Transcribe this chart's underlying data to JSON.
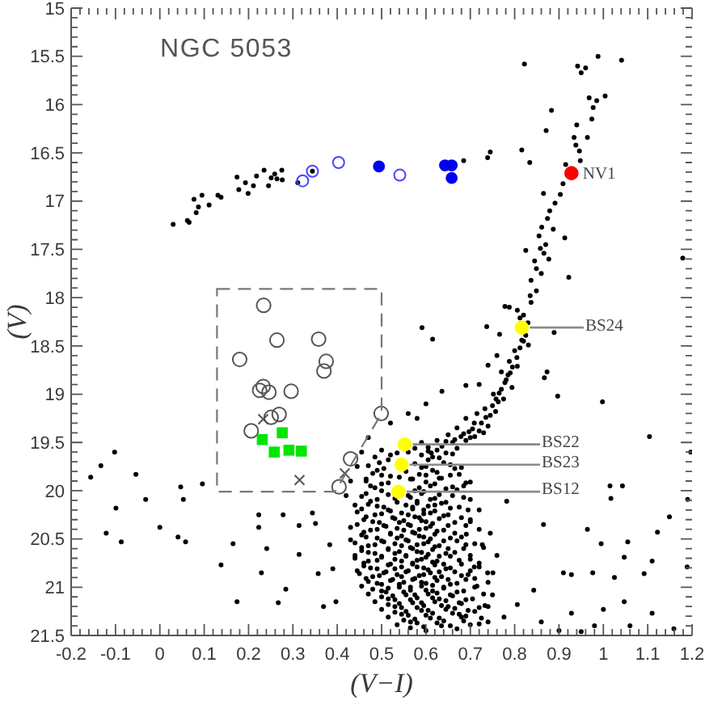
{
  "chart_data": {
    "type": "scatter",
    "title": "NGC 5053",
    "xlabel": "(V−I)",
    "ylabel": "(V)",
    "xlim": [
      -0.2,
      1.2
    ],
    "ylim": [
      21.5,
      15
    ],
    "xticks": [
      -0.2,
      {
        "value": -0.18,
        "label": null
      },
      {
        "value": -0.16,
        "label": null
      },
      {
        "value": -0.14,
        "label": null
      },
      {
        "value": -0.12,
        "label": null
      },
      -0.1,
      {
        "value": -0.08,
        "label": null
      },
      {
        "value": -0.06,
        "label": null
      },
      {
        "value": -0.04,
        "label": null
      },
      {
        "value": -0.02,
        "label": null
      },
      0,
      {
        "value": 0.02,
        "label": null
      },
      {
        "value": 0.04,
        "label": null
      },
      {
        "value": 0.06,
        "label": null
      },
      {
        "value": 0.08,
        "label": null
      },
      0.1,
      {
        "value": 0.12,
        "label": null
      },
      {
        "value": 0.14,
        "label": null
      },
      {
        "value": 0.16,
        "label": null
      },
      {
        "value": 0.18,
        "label": null
      },
      0.2,
      {
        "value": 0.22,
        "label": null
      },
      {
        "value": 0.24,
        "label": null
      },
      {
        "value": 0.26,
        "label": null
      },
      {
        "value": 0.28,
        "label": null
      },
      0.3,
      {
        "value": 0.32,
        "label": null
      },
      {
        "value": 0.34,
        "label": null
      },
      {
        "value": 0.36,
        "label": null
      },
      {
        "value": 0.38,
        "label": null
      },
      0.4,
      {
        "value": 0.42,
        "label": null
      },
      {
        "value": 0.44,
        "label": null
      },
      {
        "value": 0.46,
        "label": null
      },
      {
        "value": 0.48,
        "label": null
      },
      0.5,
      {
        "value": 0.52,
        "label": null
      },
      {
        "value": 0.54,
        "label": null
      },
      {
        "value": 0.56,
        "label": null
      },
      {
        "value": 0.58,
        "label": null
      },
      0.6,
      {
        "value": 0.62,
        "label": null
      },
      {
        "value": 0.64,
        "label": null
      },
      {
        "value": 0.66,
        "label": null
      },
      {
        "value": 0.68,
        "label": null
      },
      0.7,
      {
        "value": 0.72,
        "label": null
      },
      {
        "value": 0.74,
        "label": null
      },
      {
        "value": 0.76,
        "label": null
      },
      {
        "value": 0.78,
        "label": null
      },
      0.8,
      {
        "value": 0.82,
        "label": null
      },
      {
        "value": 0.84,
        "label": null
      },
      {
        "value": 0.86,
        "label": null
      },
      {
        "value": 0.88,
        "label": null
      },
      0.9,
      {
        "value": 0.92,
        "label": null
      },
      {
        "value": 0.94,
        "label": null
      },
      {
        "value": 0.96,
        "label": null
      },
      {
        "value": 0.98,
        "label": null
      },
      1,
      {
        "value": 1.02,
        "label": null
      },
      {
        "value": 1.04,
        "label": null
      },
      {
        "value": 1.06,
        "label": null
      },
      {
        "value": 1.08,
        "label": null
      },
      1.1,
      {
        "value": 1.12,
        "label": null
      },
      {
        "value": 1.14,
        "label": null
      },
      {
        "value": 1.16,
        "label": null
      },
      {
        "value": 1.18,
        "label": null
      },
      1.2
    ],
    "yticks": [
      15,
      {
        "value": 15.1,
        "label": null
      },
      {
        "value": 15.2,
        "label": null
      },
      {
        "value": 15.3,
        "label": null
      },
      {
        "value": 15.4,
        "label": null
      },
      15.5,
      {
        "value": 15.6,
        "label": null
      },
      {
        "value": 15.7,
        "label": null
      },
      {
        "value": 15.8,
        "label": null
      },
      {
        "value": 15.9,
        "label": null
      },
      16,
      {
        "value": 16.1,
        "label": null
      },
      {
        "value": 16.2,
        "label": null
      },
      {
        "value": 16.3,
        "label": null
      },
      {
        "value": 16.4,
        "label": null
      },
      16.5,
      {
        "value": 16.6,
        "label": null
      },
      {
        "value": 16.7,
        "label": null
      },
      {
        "value": 16.8,
        "label": null
      },
      {
        "value": 16.9,
        "label": null
      },
      17,
      {
        "value": 17.1,
        "label": null
      },
      {
        "value": 17.2,
        "label": null
      },
      {
        "value": 17.3,
        "label": null
      },
      {
        "value": 17.4,
        "label": null
      },
      17.5,
      {
        "value": 17.6,
        "label": null
      },
      {
        "value": 17.7,
        "label": null
      },
      {
        "value": 17.8,
        "label": null
      },
      {
        "value": 17.9,
        "label": null
      },
      18,
      {
        "value": 18.1,
        "label": null
      },
      {
        "value": 18.2,
        "label": null
      },
      {
        "value": 18.3,
        "label": null
      },
      {
        "value": 18.4,
        "label": null
      },
      18.5,
      {
        "value": 18.6,
        "label": null
      },
      {
        "value": 18.7,
        "label": null
      },
      {
        "value": 18.8,
        "label": null
      },
      {
        "value": 18.9,
        "label": null
      },
      19,
      {
        "value": 19.1,
        "label": null
      },
      {
        "value": 19.2,
        "label": null
      },
      {
        "value": 19.3,
        "label": null
      },
      {
        "value": 19.4,
        "label": null
      },
      19.5,
      {
        "value": 19.6,
        "label": null
      },
      {
        "value": 19.7,
        "label": null
      },
      {
        "value": 19.8,
        "label": null
      },
      {
        "value": 19.9,
        "label": null
      },
      20,
      {
        "value": 20.1,
        "label": null
      },
      {
        "value": 20.2,
        "label": null
      },
      {
        "value": 20.3,
        "label": null
      },
      {
        "value": 20.4,
        "label": null
      },
      20.5,
      {
        "value": 20.6,
        "label": null
      },
      {
        "value": 20.7,
        "label": null
      },
      {
        "value": 20.8,
        "label": null
      },
      {
        "value": 20.9,
        "label": null
      },
      21,
      {
        "value": 21.1,
        "label": null
      },
      {
        "value": 21.2,
        "label": null
      },
      {
        "value": 21.3,
        "label": null
      },
      {
        "value": 21.4,
        "label": null
      },
      21.5
    ],
    "series": [
      {
        "color": "#000000",
        "marker": "circle",
        "x": [
          0.03,
          0.062,
          0.066,
          0.077,
          0.087,
          0.082,
          0.095,
          0.111,
          0.131,
          0.138,
          0.174,
          0.178,
          0.193,
          0.199,
          0.211,
          0.218,
          0.235,
          0.245,
          0.251,
          0.259,
          0.264,
          0.275,
          0.276,
          0.311,
          0.344,
          0.685,
          0.739,
          0.745,
          0.816,
          0.834,
          0.822,
          0.988,
          1.041,
          0.942,
          0.96,
          0.95,
          1.004,
          0.968,
          0.985,
          0.977,
          0.974,
          0.883,
          0.871,
          0.94,
          0.964,
          0.934,
          0.938,
          0.946,
          0.948,
          0.915,
          0.909,
          0.903,
          0.891,
          0.879,
          0.865,
          0.874,
          0.861,
          0.887,
          0.913,
          0.858,
          0.866,
          0.877,
          0.849,
          0.922,
          0.837,
          0.849,
          0.837,
          0.825,
          0.806,
          0.788,
          0.778,
          0.812,
          0.83,
          0.889,
          0.737,
          0.766,
          0.825,
          0.831,
          0.591,
          0.615,
          1.179,
          0.855,
          0.87,
          0.845,
          0.86,
          0.835,
          0.82,
          0.816,
          0.8,
          0.788,
          0.806,
          0.77,
          0.781,
          0.794,
          0.752,
          0.763,
          0.733,
          0.745,
          0.709,
          0.697,
          0.679,
          0.66,
          0.636,
          0.612,
          0.867,
          0.873,
          0.897,
          0.998,
          0.76,
          0.74,
          0.72,
          0.775,
          0.715,
          0.69,
          0.67,
          0.65,
          0.7,
          0.72,
          0.625,
          0.59
        ],
        "values": [
          17.24,
          17.2,
          17.22,
          16.98,
          17.06,
          17.12,
          16.94,
          17.04,
          16.94,
          16.96,
          16.75,
          16.88,
          16.81,
          16.92,
          16.84,
          16.74,
          16.68,
          16.84,
          16.76,
          16.72,
          16.77,
          16.68,
          16.78,
          16.81,
          16.69,
          16.58,
          16.55,
          16.49,
          16.47,
          16.6,
          15.58,
          15.5,
          15.54,
          15.6,
          15.62,
          15.67,
          15.91,
          15.93,
          15.96,
          16.03,
          16.15,
          16.06,
          16.27,
          16.21,
          16.34,
          16.34,
          16.42,
          16.48,
          16.58,
          16.62,
          16.82,
          16.93,
          17.02,
          17.1,
          16.92,
          17.18,
          17.27,
          17.29,
          17.38,
          17.49,
          17.54,
          17.6,
          17.7,
          17.79,
          17.82,
          17.93,
          18.05,
          17.51,
          18.13,
          18.1,
          18.09,
          18.21,
          18.26,
          18.36,
          18.3,
          18.38,
          18.39,
          18.49,
          18.31,
          18.43,
          17.59,
          17.36,
          17.45,
          17.62,
          17.75,
          17.98,
          18.18,
          18.44,
          18.55,
          18.66,
          18.71,
          18.77,
          18.85,
          18.93,
          19.0,
          19.08,
          19.15,
          19.22,
          19.3,
          19.39,
          19.44,
          19.5,
          19.54,
          19.61,
          18.83,
          18.77,
          19.02,
          19.08,
          18.6,
          18.7,
          18.9,
          19.05,
          19.2,
          19.25,
          19.35,
          19.42,
          19.45,
          19.38,
          19.48,
          19.5
        ]
      },
      {
        "color": "#000000",
        "marker": "circle",
        "x": [
          0.5,
          0.535,
          0.575,
          0.605,
          0.485,
          0.515,
          0.59,
          0.63,
          0.66,
          0.47,
          0.505,
          0.575,
          0.6,
          0.64,
          0.68,
          0.48,
          0.52,
          0.555,
          0.585,
          0.615,
          0.655,
          0.465,
          0.5,
          0.565,
          0.6,
          0.63,
          0.69,
          0.485,
          0.575,
          0.61,
          0.645,
          0.455,
          0.49,
          0.515,
          0.565,
          0.59,
          0.62,
          0.66,
          0.7,
          0.47,
          0.505,
          0.535,
          0.555,
          0.58,
          0.605,
          0.635,
          0.675,
          0.445,
          0.485,
          0.515,
          0.545,
          0.57,
          0.595,
          0.62,
          0.65,
          0.72,
          0.46,
          0.495,
          0.525,
          0.55,
          0.575,
          0.6,
          0.63,
          0.665,
          0.43,
          0.475,
          0.505,
          0.535,
          0.56,
          0.585,
          0.61,
          0.64,
          0.69,
          0.455,
          0.49,
          0.52,
          0.545,
          0.57,
          0.595,
          0.62,
          0.655,
          0.745
        ],
        "values": [
          19.58,
          19.61,
          19.56,
          19.59,
          19.65,
          19.68,
          19.63,
          19.66,
          19.62,
          19.74,
          19.77,
          19.72,
          19.75,
          19.71,
          19.76,
          19.82,
          19.85,
          19.8,
          19.83,
          19.79,
          19.84,
          19.9,
          19.93,
          19.88,
          19.91,
          19.87,
          19.92,
          19.97,
          20.0,
          19.95,
          19.98,
          20.06,
          20.09,
          20.04,
          20.07,
          20.03,
          20.08,
          20.05,
          20.09,
          20.14,
          20.17,
          20.12,
          20.15,
          20.11,
          20.16,
          20.13,
          20.17,
          20.22,
          20.25,
          20.2,
          20.23,
          20.19,
          20.24,
          20.21,
          20.25,
          20.2,
          20.3,
          20.33,
          20.28,
          20.31,
          20.27,
          20.32,
          20.29,
          20.33,
          20.38,
          20.41,
          20.36,
          20.39,
          20.35,
          20.4,
          20.37,
          20.41,
          20.36,
          20.46,
          20.49,
          20.44,
          20.47,
          20.43,
          20.48,
          20.45,
          20.49,
          20.44
        ]
      },
      {
        "color": "#000000",
        "marker": "circle",
        "x": [
          0.44,
          0.47,
          0.5,
          0.53,
          0.555,
          0.58,
          0.605,
          0.63,
          0.67,
          0.71,
          0.455,
          0.485,
          0.515,
          0.54,
          0.565,
          0.59,
          0.615,
          0.645,
          0.685,
          0.44,
          0.47,
          0.5,
          0.53,
          0.555,
          0.58,
          0.6,
          0.625,
          0.655,
          0.7,
          0.76,
          0.46,
          0.49,
          0.52,
          0.545,
          0.57,
          0.595,
          0.62,
          0.645,
          0.68,
          0.72,
          0.45,
          0.48,
          0.51,
          0.535,
          0.56,
          0.585,
          0.61,
          0.635,
          0.665,
          0.695,
          0.47,
          0.5,
          0.525,
          0.55,
          0.575,
          0.6,
          0.625,
          0.655,
          0.69,
          0.74,
          0.48,
          0.51,
          0.54,
          0.565,
          0.59,
          0.615,
          0.64,
          0.67,
          0.71,
          0.5,
          0.53,
          0.555,
          0.58,
          0.605,
          0.63,
          0.66,
          0.69,
          0.75,
          0.515,
          0.545,
          0.57,
          0.595,
          0.62,
          0.65,
          0.68,
          0.72,
          0.53,
          0.56,
          0.59,
          0.615,
          0.645,
          0.675,
          0.71,
          0.55,
          0.58,
          0.61,
          0.64,
          0.68,
          0.74,
          0.565,
          0.6,
          0.635,
          0.67,
          0.7
        ],
        "values": [
          20.54,
          20.57,
          20.52,
          20.55,
          20.51,
          20.56,
          20.53,
          20.57,
          20.52,
          20.55,
          20.62,
          20.65,
          20.6,
          20.63,
          20.59,
          20.64,
          20.61,
          20.65,
          20.6,
          20.7,
          20.73,
          20.68,
          20.71,
          20.67,
          20.72,
          20.69,
          20.73,
          20.68,
          20.71,
          20.67,
          20.78,
          20.81,
          20.76,
          20.79,
          20.75,
          20.8,
          20.77,
          20.81,
          20.76,
          20.79,
          20.86,
          20.89,
          20.84,
          20.87,
          20.83,
          20.88,
          20.85,
          20.89,
          20.84,
          20.87,
          20.94,
          20.97,
          20.92,
          20.95,
          20.91,
          20.96,
          20.93,
          20.97,
          20.92,
          20.95,
          21.02,
          21.05,
          21.0,
          21.03,
          20.99,
          21.04,
          21.01,
          21.05,
          21.0,
          21.1,
          21.13,
          21.08,
          21.11,
          21.07,
          21.12,
          21.09,
          21.13,
          21.08,
          21.18,
          21.21,
          21.16,
          21.19,
          21.15,
          21.2,
          21.17,
          21.21,
          21.26,
          21.29,
          21.24,
          21.27,
          21.23,
          21.28,
          21.25,
          21.34,
          21.37,
          21.32,
          21.35,
          21.31,
          21.36,
          21.42,
          21.45,
          21.4,
          21.43,
          21.39
        ]
      },
      {
        "color": "#000000",
        "marker": "circle",
        "x": [
          0.52,
          0.56,
          0.615,
          0.645,
          0.495,
          0.605,
          0.655,
          0.49,
          0.59,
          0.625,
          0.665,
          0.465,
          0.5,
          0.54,
          0.57,
          0.6,
          0.635,
          0.675,
          0.475,
          0.515,
          0.585,
          0.62,
          0.66,
          0.7,
          0.465,
          0.5,
          0.56,
          0.595,
          0.63,
          0.67,
          0.475,
          0.53,
          0.58,
          0.61,
          0.645,
          0.685,
          0.455,
          0.49,
          0.52,
          0.57,
          0.595,
          0.62,
          0.655,
          0.695,
          0.465,
          0.5,
          0.53,
          0.56,
          0.585,
          0.61,
          0.64,
          0.68,
          0.445,
          0.48,
          0.51,
          0.54,
          0.565,
          0.59,
          0.615,
          0.65,
          0.7,
          0.46,
          0.49,
          0.52,
          0.55,
          0.575,
          0.6,
          0.625,
          0.665,
          0.72,
          0.43,
          0.465,
          0.505,
          0.535,
          0.56,
          0.585,
          0.61,
          0.64,
          0.68,
          0.455,
          0.485,
          0.515,
          0.545,
          0.57,
          0.595,
          0.62,
          0.65,
          0.69,
          0.73,
          0.44,
          0.47,
          0.5,
          0.53,
          0.555,
          0.58,
          0.605,
          0.63,
          0.665,
          0.7,
          0.46,
          0.49,
          0.515,
          0.545,
          0.57,
          0.59,
          0.615,
          0.64,
          0.675,
          0.72
        ],
        "values": [
          19.63,
          19.6,
          19.65,
          19.61,
          19.71,
          19.68,
          19.73,
          19.79,
          19.76,
          19.81,
          19.77,
          19.88,
          19.84,
          19.86,
          19.88,
          19.84,
          19.87,
          19.83,
          19.95,
          19.92,
          19.97,
          19.93,
          19.96,
          19.91,
          20.03,
          20.0,
          20.05,
          20.01,
          20.04,
          19.99,
          20.11,
          20.08,
          20.13,
          20.09,
          20.12,
          20.07,
          20.19,
          20.16,
          20.21,
          20.17,
          20.2,
          20.15,
          20.18,
          20.2,
          20.27,
          20.24,
          20.29,
          20.25,
          20.28,
          20.23,
          20.26,
          20.28,
          20.35,
          20.32,
          20.37,
          20.33,
          20.36,
          20.31,
          20.34,
          20.36,
          20.32,
          20.43,
          20.4,
          20.45,
          20.41,
          20.44,
          20.39,
          20.42,
          20.44,
          20.4,
          20.51,
          20.48,
          20.53,
          20.49,
          20.52,
          20.47,
          20.5,
          20.52,
          20.48,
          20.59,
          20.56,
          20.61,
          20.57,
          20.6,
          20.55,
          20.58,
          20.6,
          20.56,
          20.59,
          20.67,
          20.64,
          20.69,
          20.65,
          20.68,
          20.63,
          20.66,
          20.68,
          20.64,
          20.67,
          20.75,
          20.72,
          20.77,
          20.73,
          20.76,
          20.71,
          20.74,
          20.76,
          20.72,
          20.75
        ]
      },
      {
        "color": "#000000",
        "marker": "circle",
        "x": [
          0.445,
          0.475,
          0.505,
          0.53,
          0.555,
          0.58,
          0.605,
          0.63,
          0.655,
          0.7,
          0.465,
          0.495,
          0.52,
          0.545,
          0.57,
          0.595,
          0.62,
          0.65,
          0.68,
          0.71,
          0.455,
          0.49,
          0.515,
          0.54,
          0.565,
          0.59,
          0.615,
          0.64,
          0.67,
          0.715,
          0.47,
          0.5,
          0.525,
          0.55,
          0.575,
          0.6,
          0.625,
          0.655,
          0.685,
          0.73,
          0.485,
          0.515,
          0.54,
          0.565,
          0.59,
          0.615,
          0.645,
          0.675,
          0.705,
          0.5,
          0.53,
          0.555,
          0.58,
          0.605,
          0.635,
          0.665,
          0.695,
          0.74,
          0.515,
          0.545,
          0.575,
          0.6,
          0.63,
          0.66,
          0.69,
          0.725,
          0.535,
          0.565,
          0.595,
          0.625,
          0.655,
          0.685,
          0.72,
          0.605,
          0.625,
          0.645,
          0.665,
          0.685,
          0.705,
          0.725,
          0.735,
          0.75,
          0.758,
          0.77,
          0.778,
          0.785,
          0.795,
          0.805,
          0.812,
          0.82,
          0.69,
          0.67,
          0.71,
          0.73,
          0.74,
          0.757,
          0.765,
          0.79
        ],
        "values": [
          20.83,
          20.8,
          20.85,
          20.81,
          20.84,
          20.79,
          20.82,
          20.84,
          20.8,
          20.83,
          20.91,
          20.88,
          20.93,
          20.89,
          20.92,
          20.87,
          20.9,
          20.92,
          20.88,
          20.91,
          20.99,
          20.96,
          21.01,
          20.97,
          21.0,
          20.95,
          20.98,
          21.0,
          20.96,
          20.99,
          21.07,
          21.04,
          21.09,
          21.05,
          21.08,
          21.03,
          21.06,
          21.08,
          21.04,
          21.07,
          21.15,
          21.12,
          21.17,
          21.13,
          21.16,
          21.11,
          21.14,
          21.16,
          21.12,
          21.23,
          21.2,
          21.25,
          21.21,
          21.24,
          21.19,
          21.22,
          21.24,
          21.2,
          21.31,
          21.28,
          21.33,
          21.29,
          21.32,
          21.27,
          21.3,
          21.32,
          21.39,
          21.36,
          21.41,
          21.37,
          21.4,
          21.35,
          21.38,
          19.55,
          19.58,
          19.49,
          19.47,
          19.41,
          19.36,
          19.3,
          19.24,
          19.12,
          19.05,
          18.95,
          18.88,
          18.8,
          18.72,
          18.62,
          18.52,
          18.45,
          19.48,
          19.56,
          19.44,
          19.4,
          19.33,
          19.18,
          18.99,
          18.78
        ]
      },
      {
        "color": "#000000",
        "marker": "circle",
        "x": [
          -0.156,
          -0.102,
          -0.133,
          -0.054,
          -0.032,
          -0.099,
          0.0,
          -0.121,
          -0.087,
          0.047,
          0.053,
          0.041,
          0.058,
          0.096,
          0.138,
          0.165,
          0.174,
          0.223,
          0.223,
          0.229,
          0.241,
          0.267,
          0.278,
          0.284,
          0.314,
          0.314,
          0.344,
          0.351,
          0.357,
          0.369,
          0.383,
          0.39,
          0.397,
          1.104,
          1.015,
          1.017,
          1.043,
          1.197,
          1.19,
          1.149,
          1.122,
          1.055,
          0.995,
          0.964,
          0.865,
          0.976,
          1.025,
          1.047,
          1.092,
          1.11,
          1.189,
          1.0,
          1.047,
          1.11,
          1.159,
          0.928,
          0.91,
          0.928,
          0.843,
          0.806,
          0.776,
          0.86,
          0.727,
          0.739,
          0.709,
          0.691,
          0.7,
          0.685,
          0.782,
          0.751,
          0.733,
          0.636,
          0.69,
          0.56,
          0.6,
          0.47,
          0.455,
          0.445,
          0.43,
          0.42,
          0.44,
          0.52,
          0.58,
          0.9,
          0.95,
          0.98,
          1.06
        ],
        "values": [
          19.86,
          19.6,
          19.74,
          19.83,
          20.09,
          20.18,
          20.38,
          20.44,
          20.53,
          19.96,
          20.09,
          20.48,
          20.53,
          19.93,
          20.77,
          20.55,
          21.15,
          20.25,
          20.38,
          20.85,
          20.6,
          21.16,
          20.25,
          21.02,
          20.36,
          20.66,
          20.23,
          20.34,
          20.86,
          21.2,
          20.56,
          20.81,
          21.15,
          19.44,
          19.95,
          20.08,
          19.95,
          19.6,
          20.09,
          20.27,
          20.43,
          20.53,
          20.55,
          20.4,
          20.35,
          20.85,
          20.9,
          20.69,
          20.86,
          20.73,
          20.79,
          21.23,
          21.15,
          21.27,
          21.43,
          20.87,
          20.85,
          21.27,
          21.03,
          21.18,
          21.31,
          21.36,
          20.56,
          20.85,
          20.79,
          20.45,
          20.3,
          19.95,
          20.11,
          20.85,
          21.19,
          18.97,
          18.91,
          19.2,
          19.1,
          19.45,
          19.6,
          19.75,
          19.9,
          20.05,
          20.15,
          19.3,
          19.25,
          21.45,
          21.46,
          21.4,
          21.4
        ]
      },
      {
        "color": "#555555",
        "marker": "circle-open",
        "x": [
          0.234,
          0.264,
          0.358,
          0.18,
          0.375,
          0.37,
          0.225,
          0.233,
          0.246,
          0.296,
          0.251,
          0.269,
          0.206,
          0.499,
          0.43,
          0.404
        ],
        "values": [
          18.08,
          18.44,
          18.43,
          18.64,
          18.66,
          18.76,
          18.96,
          18.92,
          18.98,
          18.97,
          19.24,
          19.21,
          19.38,
          19.2,
          19.67,
          19.96
        ]
      },
      {
        "color": "#555555",
        "marker": "cross",
        "x": [
          0.233,
          0.315,
          0.417
        ],
        "values": [
          19.26,
          19.89,
          19.82
        ]
      },
      {
        "color": "#00e600",
        "marker": "square",
        "x": [
          0.231,
          0.276,
          0.258,
          0.291,
          0.319
        ],
        "values": [
          19.47,
          19.4,
          19.6,
          19.58,
          19.59
        ]
      },
      {
        "color": "#4848ff",
        "marker": "circle-open",
        "x": [
          0.322,
          0.344,
          0.403,
          0.541
        ],
        "values": [
          16.79,
          16.69,
          16.6,
          16.73
        ]
      },
      {
        "color": "#0000f0",
        "marker": "circle",
        "x": [
          0.494,
          0.643,
          0.658,
          0.658
        ],
        "values": [
          16.64,
          16.63,
          16.63,
          16.76
        ]
      },
      {
        "color": "#ff0000",
        "marker": "circle",
        "x": [
          0.928
        ],
        "values": [
          16.71
        ]
      },
      {
        "color": "#ffff00",
        "marker": "circle",
        "x": [
          0.816,
          0.552,
          0.545,
          0.538
        ],
        "values": [
          18.31,
          19.52,
          19.73,
          20.01
        ]
      }
    ],
    "annotations": [
      {
        "text": "NV1",
        "x": 0.928,
        "y": 16.71
      },
      {
        "text": "BS24",
        "x": 0.816,
        "y": 18.31
      },
      {
        "text": "BS22",
        "x": 0.552,
        "y": 19.52
      },
      {
        "text": "BS23",
        "x": 0.545,
        "y": 19.73
      },
      {
        "text": "BS12",
        "x": 0.538,
        "y": 20.01
      }
    ]
  }
}
